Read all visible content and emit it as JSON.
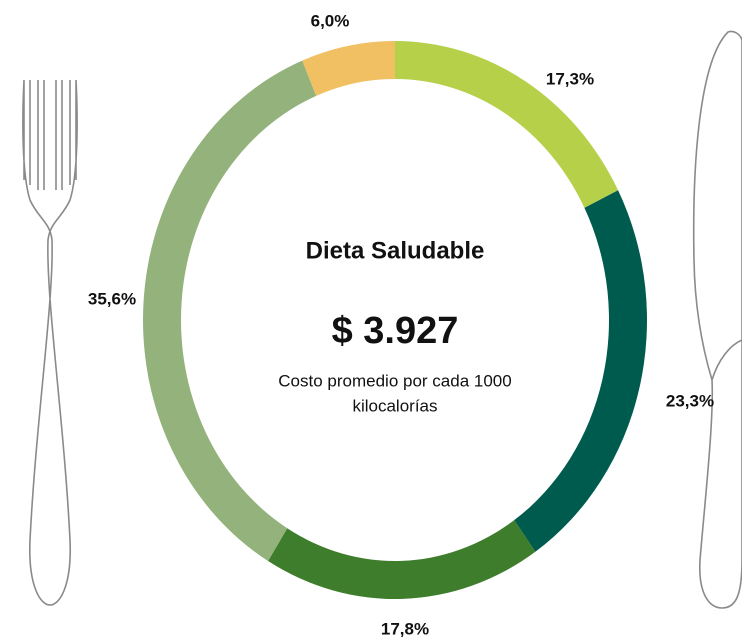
{
  "chart_data": {
    "type": "donut",
    "title": "Dieta Saludable",
    "center_value": "$ 3.927",
    "subtitle_lines": [
      "Costo promedio por cada 1000",
      "kilocalorías"
    ],
    "values": [
      17.3,
      23.3,
      17.8,
      35.6,
      6.0
    ],
    "value_labels": [
      "17,3%",
      "23,3%",
      "17,8%",
      "35,6%",
      "6,0%"
    ],
    "colors": [
      "#b6d04a",
      "#005b4f",
      "#3e7d2b",
      "#94b27c",
      "#f0c063"
    ]
  }
}
